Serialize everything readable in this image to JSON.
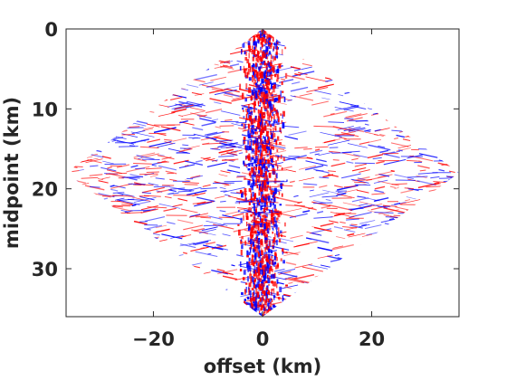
{
  "chart_data": {
    "type": "heatmap",
    "title": "",
    "xlabel": "offset (km)",
    "ylabel": "midpoint (km)",
    "xlim": [
      -36,
      36
    ],
    "ylim": [
      36,
      0
    ],
    "y_reversed": true,
    "x_ticks": [
      -20,
      0,
      20
    ],
    "x_tick_labels": [
      "−20",
      "0",
      "20"
    ],
    "y_ticks": [
      0,
      10,
      20,
      30
    ],
    "y_tick_labels": [
      "0",
      "10",
      "20",
      "30"
    ],
    "data_region": {
      "shape": "diamond",
      "vertices": [
        [
          0,
          0
        ],
        [
          36,
          18
        ],
        [
          0,
          36
        ],
        [
          -36,
          18
        ]
      ]
    },
    "colors": {
      "positive": "#ff0000",
      "negative": "#0000ff",
      "zero": "#ffffff"
    },
    "features": [
      "dense high-amplitude vertical band centered at offset 0 (approx. -5 to 5 km)",
      "diagonal streaks parallel to the diamond edges"
    ],
    "grid": false,
    "box": true
  }
}
